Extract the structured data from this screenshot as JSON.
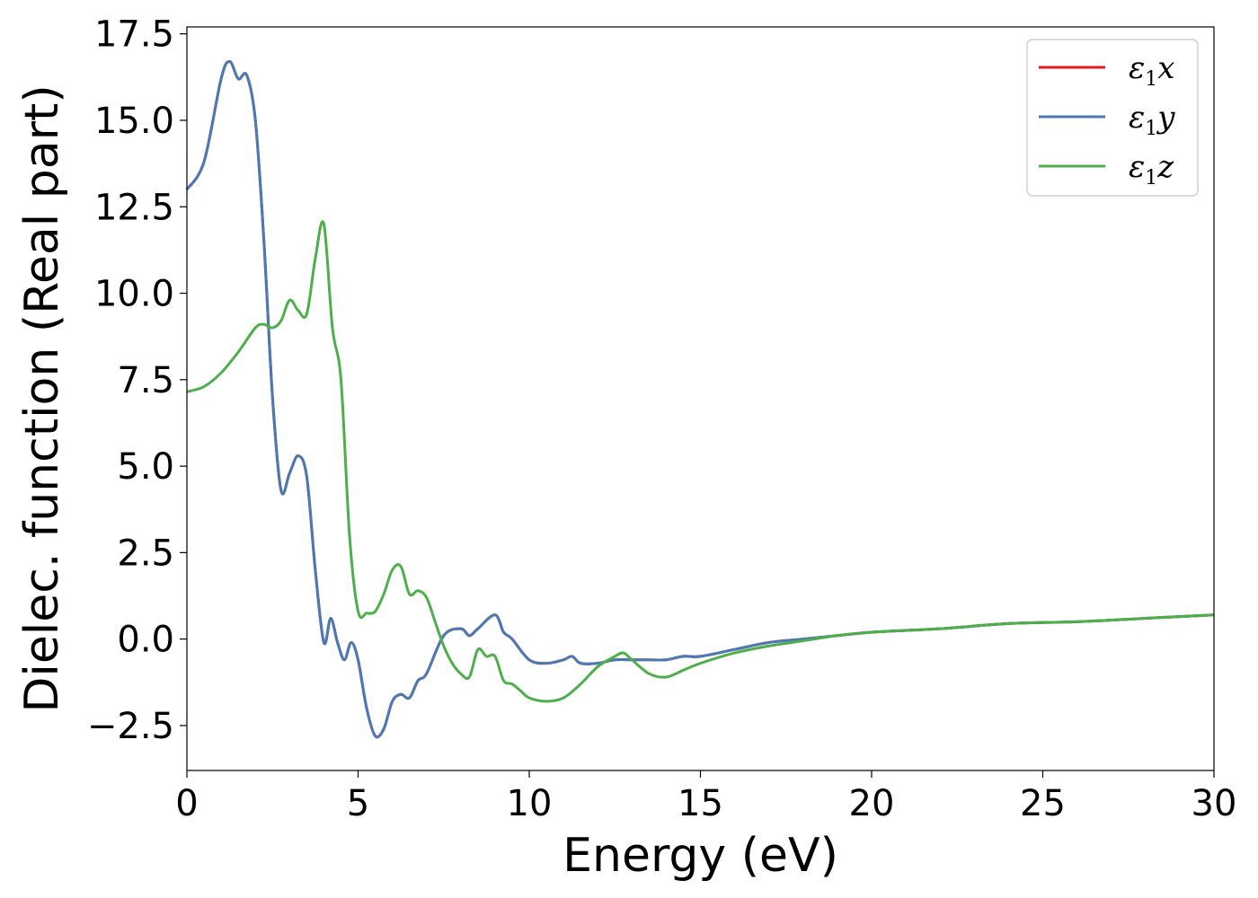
{
  "chart_data": {
    "type": "line",
    "xlabel": "Energy (eV)",
    "ylabel": "Dielec. function (Real part)",
    "xlim": [
      0,
      30
    ],
    "ylim": [
      -3.8,
      17.7
    ],
    "xticks": [
      0,
      5,
      10,
      15,
      20,
      25,
      30
    ],
    "xtick_labels": [
      "0",
      "5",
      "10",
      "15",
      "20",
      "25",
      "30"
    ],
    "yticks": [
      -2.5,
      0.0,
      2.5,
      5.0,
      7.5,
      10.0,
      12.5,
      15.0,
      17.5
    ],
    "ytick_labels": [
      "−2.5",
      "0.0",
      "2.5",
      "5.0",
      "7.5",
      "10.0",
      "12.5",
      "15.0",
      "17.5"
    ],
    "grid": false,
    "legend_position": "top-right",
    "series": [
      {
        "name": "ε1x",
        "legend": {
          "base": "ε",
          "sub": "1",
          "tail": "x"
        },
        "color": "#e41a1c",
        "x": [
          0,
          0.5,
          1.0,
          1.25,
          1.5,
          1.75,
          2.0,
          2.25,
          2.5,
          2.75,
          3.0,
          3.25,
          3.5,
          3.75,
          4.0,
          4.2,
          4.4,
          4.6,
          4.8,
          5.0,
          5.25,
          5.5,
          5.75,
          6.0,
          6.25,
          6.5,
          6.75,
          7.0,
          7.5,
          8.0,
          8.25,
          8.5,
          9.0,
          9.25,
          9.5,
          10.0,
          10.5,
          11.0,
          11.25,
          11.5,
          12.0,
          12.5,
          13.0,
          13.5,
          14.0,
          14.5,
          15.0,
          16.0,
          17.0,
          18.0,
          19.0,
          20.0,
          22.0,
          24.0,
          26.0,
          28.0,
          30.0
        ],
        "values": [
          13.0,
          13.8,
          16.2,
          16.7,
          16.2,
          16.3,
          15.0,
          11.5,
          7.0,
          4.3,
          4.8,
          5.3,
          4.7,
          2.0,
          -0.1,
          0.6,
          -0.1,
          -0.6,
          -0.1,
          -0.6,
          -2.0,
          -2.8,
          -2.6,
          -1.8,
          -1.6,
          -1.7,
          -1.2,
          -1.0,
          0.1,
          0.3,
          0.1,
          0.3,
          0.7,
          0.2,
          0.0,
          -0.6,
          -0.7,
          -0.6,
          -0.5,
          -0.7,
          -0.7,
          -0.6,
          -0.6,
          -0.6,
          -0.6,
          -0.5,
          -0.5,
          -0.3,
          -0.1,
          0.0,
          0.1,
          0.2,
          0.3,
          0.45,
          0.5,
          0.6,
          0.7
        ]
      },
      {
        "name": "ε1y",
        "legend": {
          "base": "ε",
          "sub": "1",
          "tail": "y"
        },
        "color": "#4a7ab5",
        "x": [
          0,
          0.5,
          1.0,
          1.25,
          1.5,
          1.75,
          2.0,
          2.25,
          2.5,
          2.75,
          3.0,
          3.25,
          3.5,
          3.75,
          4.0,
          4.2,
          4.4,
          4.6,
          4.8,
          5.0,
          5.25,
          5.5,
          5.75,
          6.0,
          6.25,
          6.5,
          6.75,
          7.0,
          7.5,
          8.0,
          8.25,
          8.5,
          9.0,
          9.25,
          9.5,
          10.0,
          10.5,
          11.0,
          11.25,
          11.5,
          12.0,
          12.5,
          13.0,
          13.5,
          14.0,
          14.5,
          15.0,
          16.0,
          17.0,
          18.0,
          19.0,
          20.0,
          22.0,
          24.0,
          26.0,
          28.0,
          30.0
        ],
        "values": [
          13.0,
          13.8,
          16.2,
          16.7,
          16.2,
          16.3,
          15.0,
          11.5,
          7.0,
          4.3,
          4.8,
          5.3,
          4.7,
          2.0,
          -0.1,
          0.6,
          -0.1,
          -0.6,
          -0.1,
          -0.6,
          -2.0,
          -2.8,
          -2.6,
          -1.8,
          -1.6,
          -1.7,
          -1.2,
          -1.0,
          0.1,
          0.3,
          0.1,
          0.3,
          0.7,
          0.2,
          0.0,
          -0.6,
          -0.7,
          -0.6,
          -0.5,
          -0.7,
          -0.7,
          -0.6,
          -0.6,
          -0.6,
          -0.6,
          -0.5,
          -0.5,
          -0.3,
          -0.1,
          0.0,
          0.1,
          0.2,
          0.3,
          0.45,
          0.5,
          0.6,
          0.7
        ]
      },
      {
        "name": "ε1z",
        "legend": {
          "base": "ε",
          "sub": "1",
          "tail": "z"
        },
        "color": "#4daf4a",
        "x": [
          0,
          0.5,
          1.0,
          1.5,
          2.0,
          2.25,
          2.5,
          2.75,
          3.0,
          3.25,
          3.5,
          3.75,
          4.0,
          4.25,
          4.5,
          4.75,
          5.0,
          5.25,
          5.5,
          5.75,
          6.0,
          6.25,
          6.5,
          6.75,
          7.0,
          7.25,
          7.5,
          7.75,
          8.0,
          8.25,
          8.5,
          8.75,
          9.0,
          9.25,
          9.5,
          9.75,
          10.0,
          10.5,
          11.0,
          11.5,
          12.0,
          12.5,
          12.75,
          13.0,
          13.5,
          14.0,
          14.5,
          15.0,
          16.0,
          17.0,
          18.0,
          19.0,
          20.0,
          22.0,
          24.0,
          26.0,
          28.0,
          30.0
        ],
        "values": [
          7.15,
          7.3,
          7.7,
          8.3,
          9.0,
          9.1,
          9.0,
          9.2,
          9.8,
          9.5,
          9.4,
          11.0,
          12.0,
          9.0,
          7.5,
          3.0,
          0.8,
          0.75,
          0.8,
          1.3,
          2.0,
          2.1,
          1.3,
          1.4,
          1.2,
          0.5,
          -0.2,
          -0.7,
          -1.0,
          -1.1,
          -0.3,
          -0.5,
          -0.5,
          -1.2,
          -1.3,
          -1.5,
          -1.7,
          -1.8,
          -1.7,
          -1.3,
          -0.8,
          -0.5,
          -0.4,
          -0.6,
          -1.0,
          -1.1,
          -0.9,
          -0.7,
          -0.4,
          -0.2,
          -0.05,
          0.1,
          0.2,
          0.3,
          0.45,
          0.5,
          0.6,
          0.7
        ]
      }
    ]
  }
}
